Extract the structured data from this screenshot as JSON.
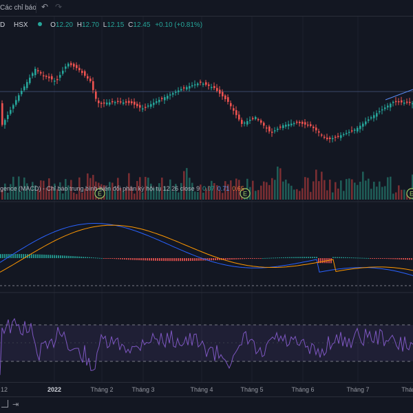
{
  "toolbar": {
    "indicators_label": "Các chỉ báo",
    "undo_icon": "undo-icon",
    "redo_icon": "redo-icon"
  },
  "legend": {
    "symbol": "D",
    "exchange": "HSX",
    "status_color": "#26a69a",
    "open_label": "O",
    "open": "12.20",
    "high_label": "H",
    "high": "12.70",
    "low_label": "L",
    "low": "12.15",
    "close_label": "C",
    "close": "12.45",
    "change": "+0.10 (+0.81%)"
  },
  "macd": {
    "title": "gence (MACD) - Chỉ báo trung bình biến đổi phân kỳ hội tụ 12 26 close 9",
    "histogram": "0.07",
    "macd": "0.71",
    "signal": "0.65"
  },
  "events": {
    "label": "E"
  },
  "xaxis": [
    "12",
    "2022",
    "Tháng 2",
    "Tháng 3",
    "Tháng 4",
    "Tháng 5",
    "Tháng 6",
    "Tháng 7",
    "Tháng"
  ],
  "colors": {
    "up": "#26a69a",
    "down": "#ef5350",
    "macd_line": "#2962ff",
    "signal_line": "#ff9800",
    "rsi": "#7e57c2",
    "background": "#131722"
  },
  "bottombar": {
    "icon1": "calendar-range-icon",
    "icon2": "goto-date-icon"
  }
}
